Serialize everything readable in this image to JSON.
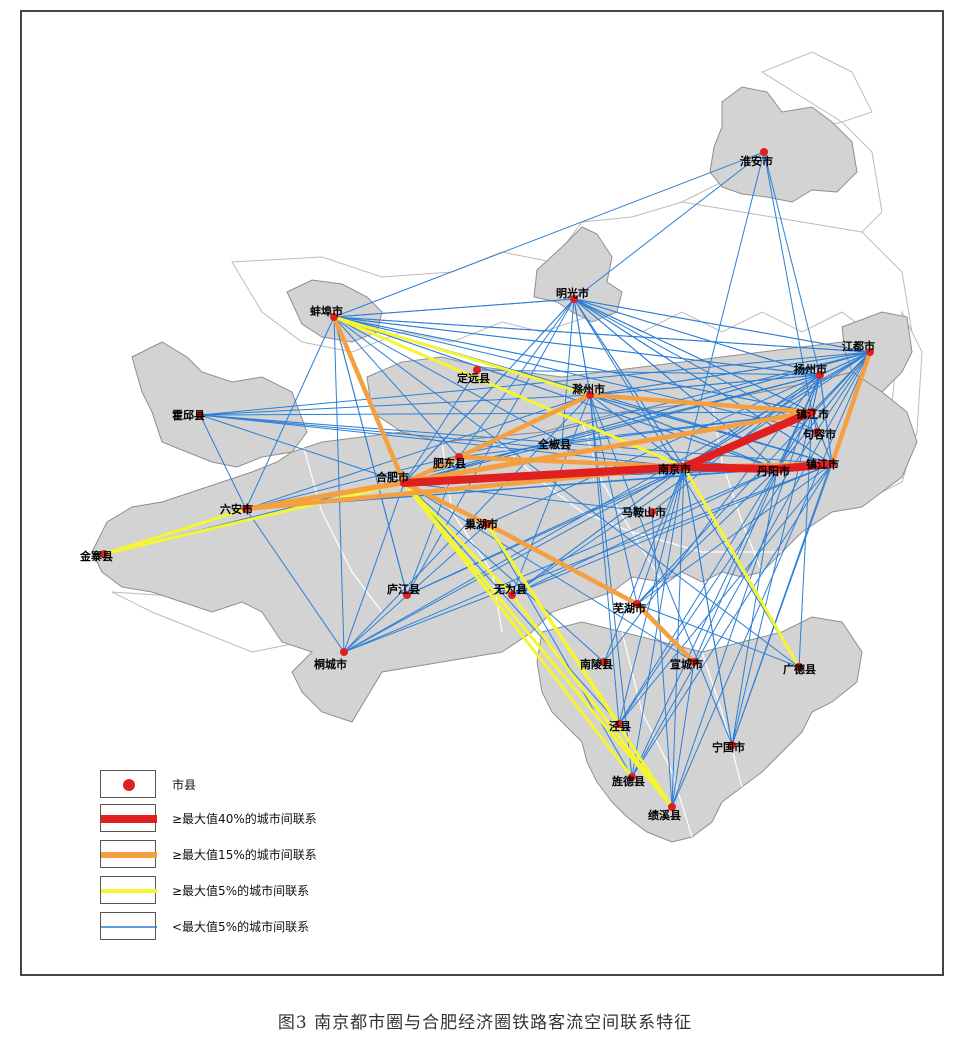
{
  "figure": {
    "caption": "图3 南京都市圈与合肥经济圈铁路客流空间联系特征"
  },
  "legend": {
    "items": [
      {
        "label": "市县",
        "kind": "dot",
        "color": "#e02020"
      },
      {
        "label": "≥最大值40%的城市间联系",
        "kind": "line",
        "color": "#e02020"
      },
      {
        "label": "≥最大值15%的城市间联系",
        "kind": "line",
        "color": "#f4a040"
      },
      {
        "label": "≥最大值5%的城市间联系",
        "kind": "line",
        "color": "#f5f532"
      },
      {
        "label": "<最大值5%的城市间联系",
        "kind": "line",
        "color": "#2b7fd6"
      }
    ]
  },
  "colors": {
    "region_fill": "#d3d3d3",
    "region_stroke": "#9a9a9a",
    "outside_fill": "#ffffff",
    "strong": "#e02020",
    "medium": "#f4a040",
    "weak": "#f5f532",
    "minor": "#2b7fd6",
    "dot": "#e02020"
  },
  "cities": {
    "huaian": "淮安市",
    "bengbu": "蚌埠市",
    "mingguang": "明光市",
    "jiangdu": "江都市",
    "yangzhou": "扬州市",
    "dingyuan": "定远县",
    "chuzhou": "滁州市",
    "zhenjiang": "镇江市",
    "huoqiu": "霍邱县",
    "jurong": "句容市",
    "quanjiao": "全椒县",
    "feidong": "肥东县",
    "hefei": "合肥市",
    "nanjing": "南京市",
    "zhenjiang2": "镇江市",
    "danyang": "丹阳市",
    "luan": "六安市",
    "maanshan": "马鞍山市",
    "jinzhai": "金寨县",
    "chaohu": "巢湖市",
    "lujiang": "庐江县",
    "wuwei": "无为县",
    "wuhu": "芜湖市",
    "tongcheng": "桐城市",
    "nanling": "南陵县",
    "xuancheng": "宣城市",
    "guangde": "广德县",
    "jingxian": "泾县",
    "ningguo": "宁国市",
    "jingde": "旌德县",
    "jixi": "绩溪县"
  }
}
